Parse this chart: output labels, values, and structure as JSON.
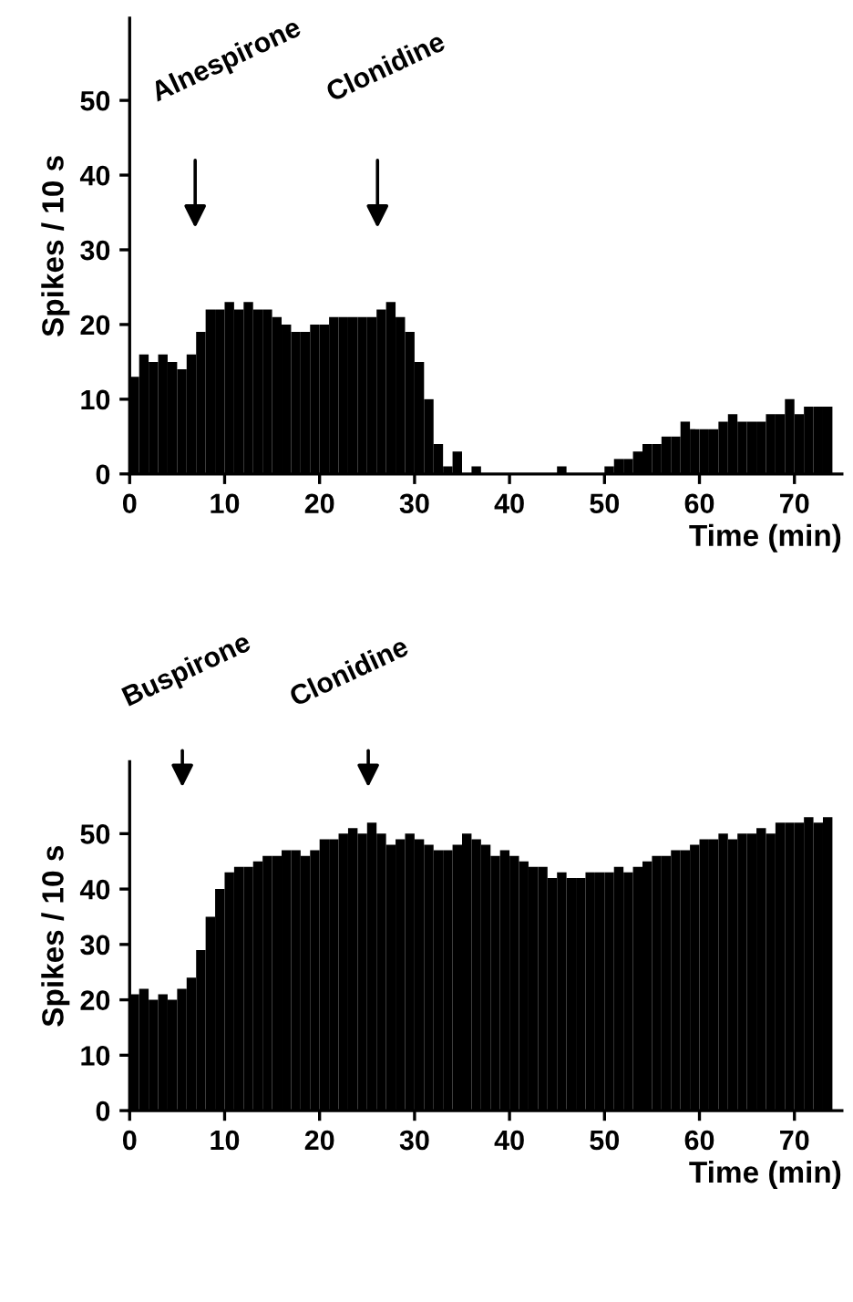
{
  "chart_data": [
    {
      "type": "histogram",
      "ylabel": "Spikes / 10 s",
      "xlabel": "Time (min)",
      "color": "#000000",
      "grid": false,
      "legend": false,
      "bins": [
        0,
        1,
        2,
        3,
        4,
        5,
        6,
        7,
        8,
        9,
        10,
        11,
        12,
        13,
        14,
        15,
        16,
        17,
        18,
        19,
        20,
        21,
        22,
        23,
        24,
        25,
        26,
        27,
        28,
        29,
        30,
        31,
        32,
        33,
        34,
        35,
        36,
        37,
        38,
        39,
        40,
        41,
        42,
        43,
        44,
        45,
        46,
        47,
        48,
        49,
        50,
        51,
        52,
        53,
        54,
        55,
        56,
        57,
        58,
        59,
        60,
        61,
        62,
        63,
        64,
        65,
        66,
        67,
        68,
        69,
        70,
        71,
        72,
        73,
        74
      ],
      "values": [
        13,
        16,
        15,
        16,
        15,
        14,
        16,
        19,
        22,
        22,
        23,
        22,
        23,
        22,
        22,
        21,
        20,
        19,
        19,
        20,
        20,
        21,
        21,
        21,
        21,
        21,
        22,
        23,
        21,
        19,
        15,
        10,
        4,
        1,
        3,
        0,
        1,
        0,
        0,
        0,
        0,
        0,
        0,
        0,
        0,
        1,
        0,
        0,
        0,
        0,
        1,
        2,
        2,
        3,
        4,
        4,
        5,
        5,
        7,
        6,
        6,
        6,
        7,
        8,
        7,
        7,
        7,
        8,
        8,
        10,
        8,
        9,
        9,
        9
      ],
      "xlim": [
        0,
        75
      ],
      "xticks": [
        0,
        10,
        20,
        30,
        40,
        50,
        60,
        70
      ],
      "ylim": [
        0,
        61
      ],
      "yticks": [
        0,
        10,
        20,
        30,
        40,
        50
      ],
      "annotations": [
        "Alnespirone",
        "Clonidine"
      ]
    },
    {
      "type": "histogram",
      "ylabel": "Spikes / 10 s",
      "xlabel": "Time (min)",
      "color": "#000000",
      "grid": false,
      "legend": false,
      "bins": [
        0,
        1,
        2,
        3,
        4,
        5,
        6,
        7,
        8,
        9,
        10,
        11,
        12,
        13,
        14,
        15,
        16,
        17,
        18,
        19,
        20,
        21,
        22,
        23,
        24,
        25,
        26,
        27,
        28,
        29,
        30,
        31,
        32,
        33,
        34,
        35,
        36,
        37,
        38,
        39,
        40,
        41,
        42,
        43,
        44,
        45,
        46,
        47,
        48,
        49,
        50,
        51,
        52,
        53,
        54,
        55,
        56,
        57,
        58,
        59,
        60,
        61,
        62,
        63,
        64,
        65,
        66,
        67,
        68,
        69,
        70,
        71,
        72,
        73,
        74
      ],
      "values": [
        21,
        22,
        20,
        21,
        20,
        22,
        24,
        29,
        35,
        40,
        43,
        44,
        44,
        45,
        46,
        46,
        47,
        47,
        46,
        47,
        49,
        49,
        50,
        51,
        50,
        52,
        50,
        48,
        49,
        50,
        49,
        48,
        47,
        47,
        48,
        50,
        49,
        48,
        46,
        47,
        46,
        45,
        44,
        44,
        42,
        43,
        42,
        42,
        43,
        43,
        43,
        44,
        43,
        44,
        45,
        46,
        46,
        47,
        47,
        48,
        49,
        49,
        50,
        49,
        50,
        50,
        51,
        50,
        52,
        52,
        52,
        53,
        52,
        53
      ],
      "xlim": [
        0,
        75
      ],
      "xticks": [
        0,
        10,
        20,
        30,
        40,
        50,
        60,
        70
      ],
      "ylim": [
        0,
        63
      ],
      "yticks": [
        0,
        10,
        20,
        30,
        40,
        50
      ],
      "annotations": [
        "Buspirone",
        "Clonidine"
      ]
    }
  ]
}
